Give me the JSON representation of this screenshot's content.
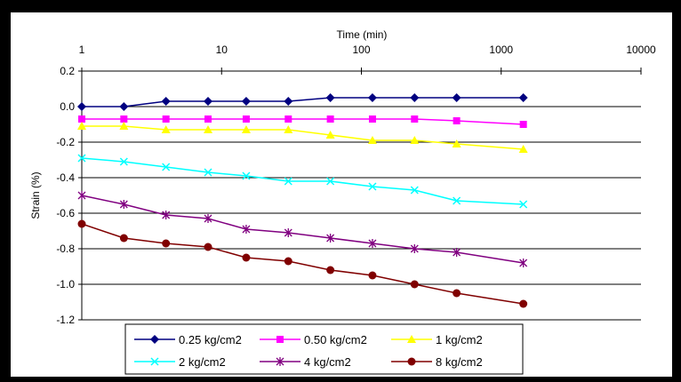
{
  "chart_data": {
    "type": "line",
    "title": "",
    "xlabel": "Time (min)",
    "ylabel": "Strain (%)",
    "x_scale": "log",
    "xlim": [
      1,
      10000
    ],
    "ylim": [
      -1.2,
      0.2
    ],
    "x_ticks": [
      1,
      10,
      100,
      1000,
      10000
    ],
    "x_tick_labels": [
      "1",
      "10",
      "100",
      "1000",
      "10000"
    ],
    "y_ticks": [
      0.2,
      0.0,
      -0.2,
      -0.4,
      -0.6,
      -0.8,
      -1.0,
      -1.2
    ],
    "y_tick_labels": [
      "0.2",
      "0.0",
      "-0.2",
      "-0.4",
      "-0.6",
      "-0.8",
      "-1.0",
      "-1.2"
    ],
    "grid": "horizontal",
    "legend_position": "bottom",
    "x": [
      1,
      2,
      4,
      8,
      15,
      30,
      60,
      120,
      240,
      480,
      1440
    ],
    "series": [
      {
        "name": "0.25 kg/cm2",
        "color": "#000080",
        "marker": "diamond",
        "values": [
          0.0,
          0.0,
          0.03,
          0.03,
          0.03,
          0.03,
          0.05,
          0.05,
          0.05,
          0.05,
          0.05
        ]
      },
      {
        "name": "0.50 kg/cm2",
        "color": "#ff00ff",
        "marker": "square",
        "values": [
          -0.07,
          -0.07,
          -0.07,
          -0.07,
          -0.07,
          -0.07,
          -0.07,
          -0.07,
          -0.07,
          -0.08,
          -0.1
        ]
      },
      {
        "name": "1 kg/cm2",
        "color": "#ffff00",
        "marker": "triangle",
        "values": [
          -0.11,
          -0.11,
          -0.13,
          -0.13,
          -0.13,
          -0.13,
          -0.16,
          -0.19,
          -0.19,
          -0.21,
          -0.24
        ]
      },
      {
        "name": "2 kg/cm2",
        "color": "#00ffff",
        "marker": "x",
        "values": [
          -0.29,
          -0.31,
          -0.34,
          -0.37,
          -0.39,
          -0.42,
          -0.42,
          -0.45,
          -0.47,
          -0.53,
          -0.55
        ]
      },
      {
        "name": "4 kg/cm2",
        "color": "#800080",
        "marker": "asterisk",
        "values": [
          -0.5,
          -0.55,
          -0.61,
          -0.63,
          -0.69,
          -0.71,
          -0.74,
          -0.77,
          -0.8,
          -0.82,
          -0.88
        ]
      },
      {
        "name": "8 kg/cm2",
        "color": "#800000",
        "marker": "circle",
        "values": [
          -0.66,
          -0.74,
          -0.77,
          -0.79,
          -0.85,
          -0.87,
          -0.92,
          -0.95,
          -1.0,
          -1.05,
          -1.11
        ]
      }
    ]
  }
}
